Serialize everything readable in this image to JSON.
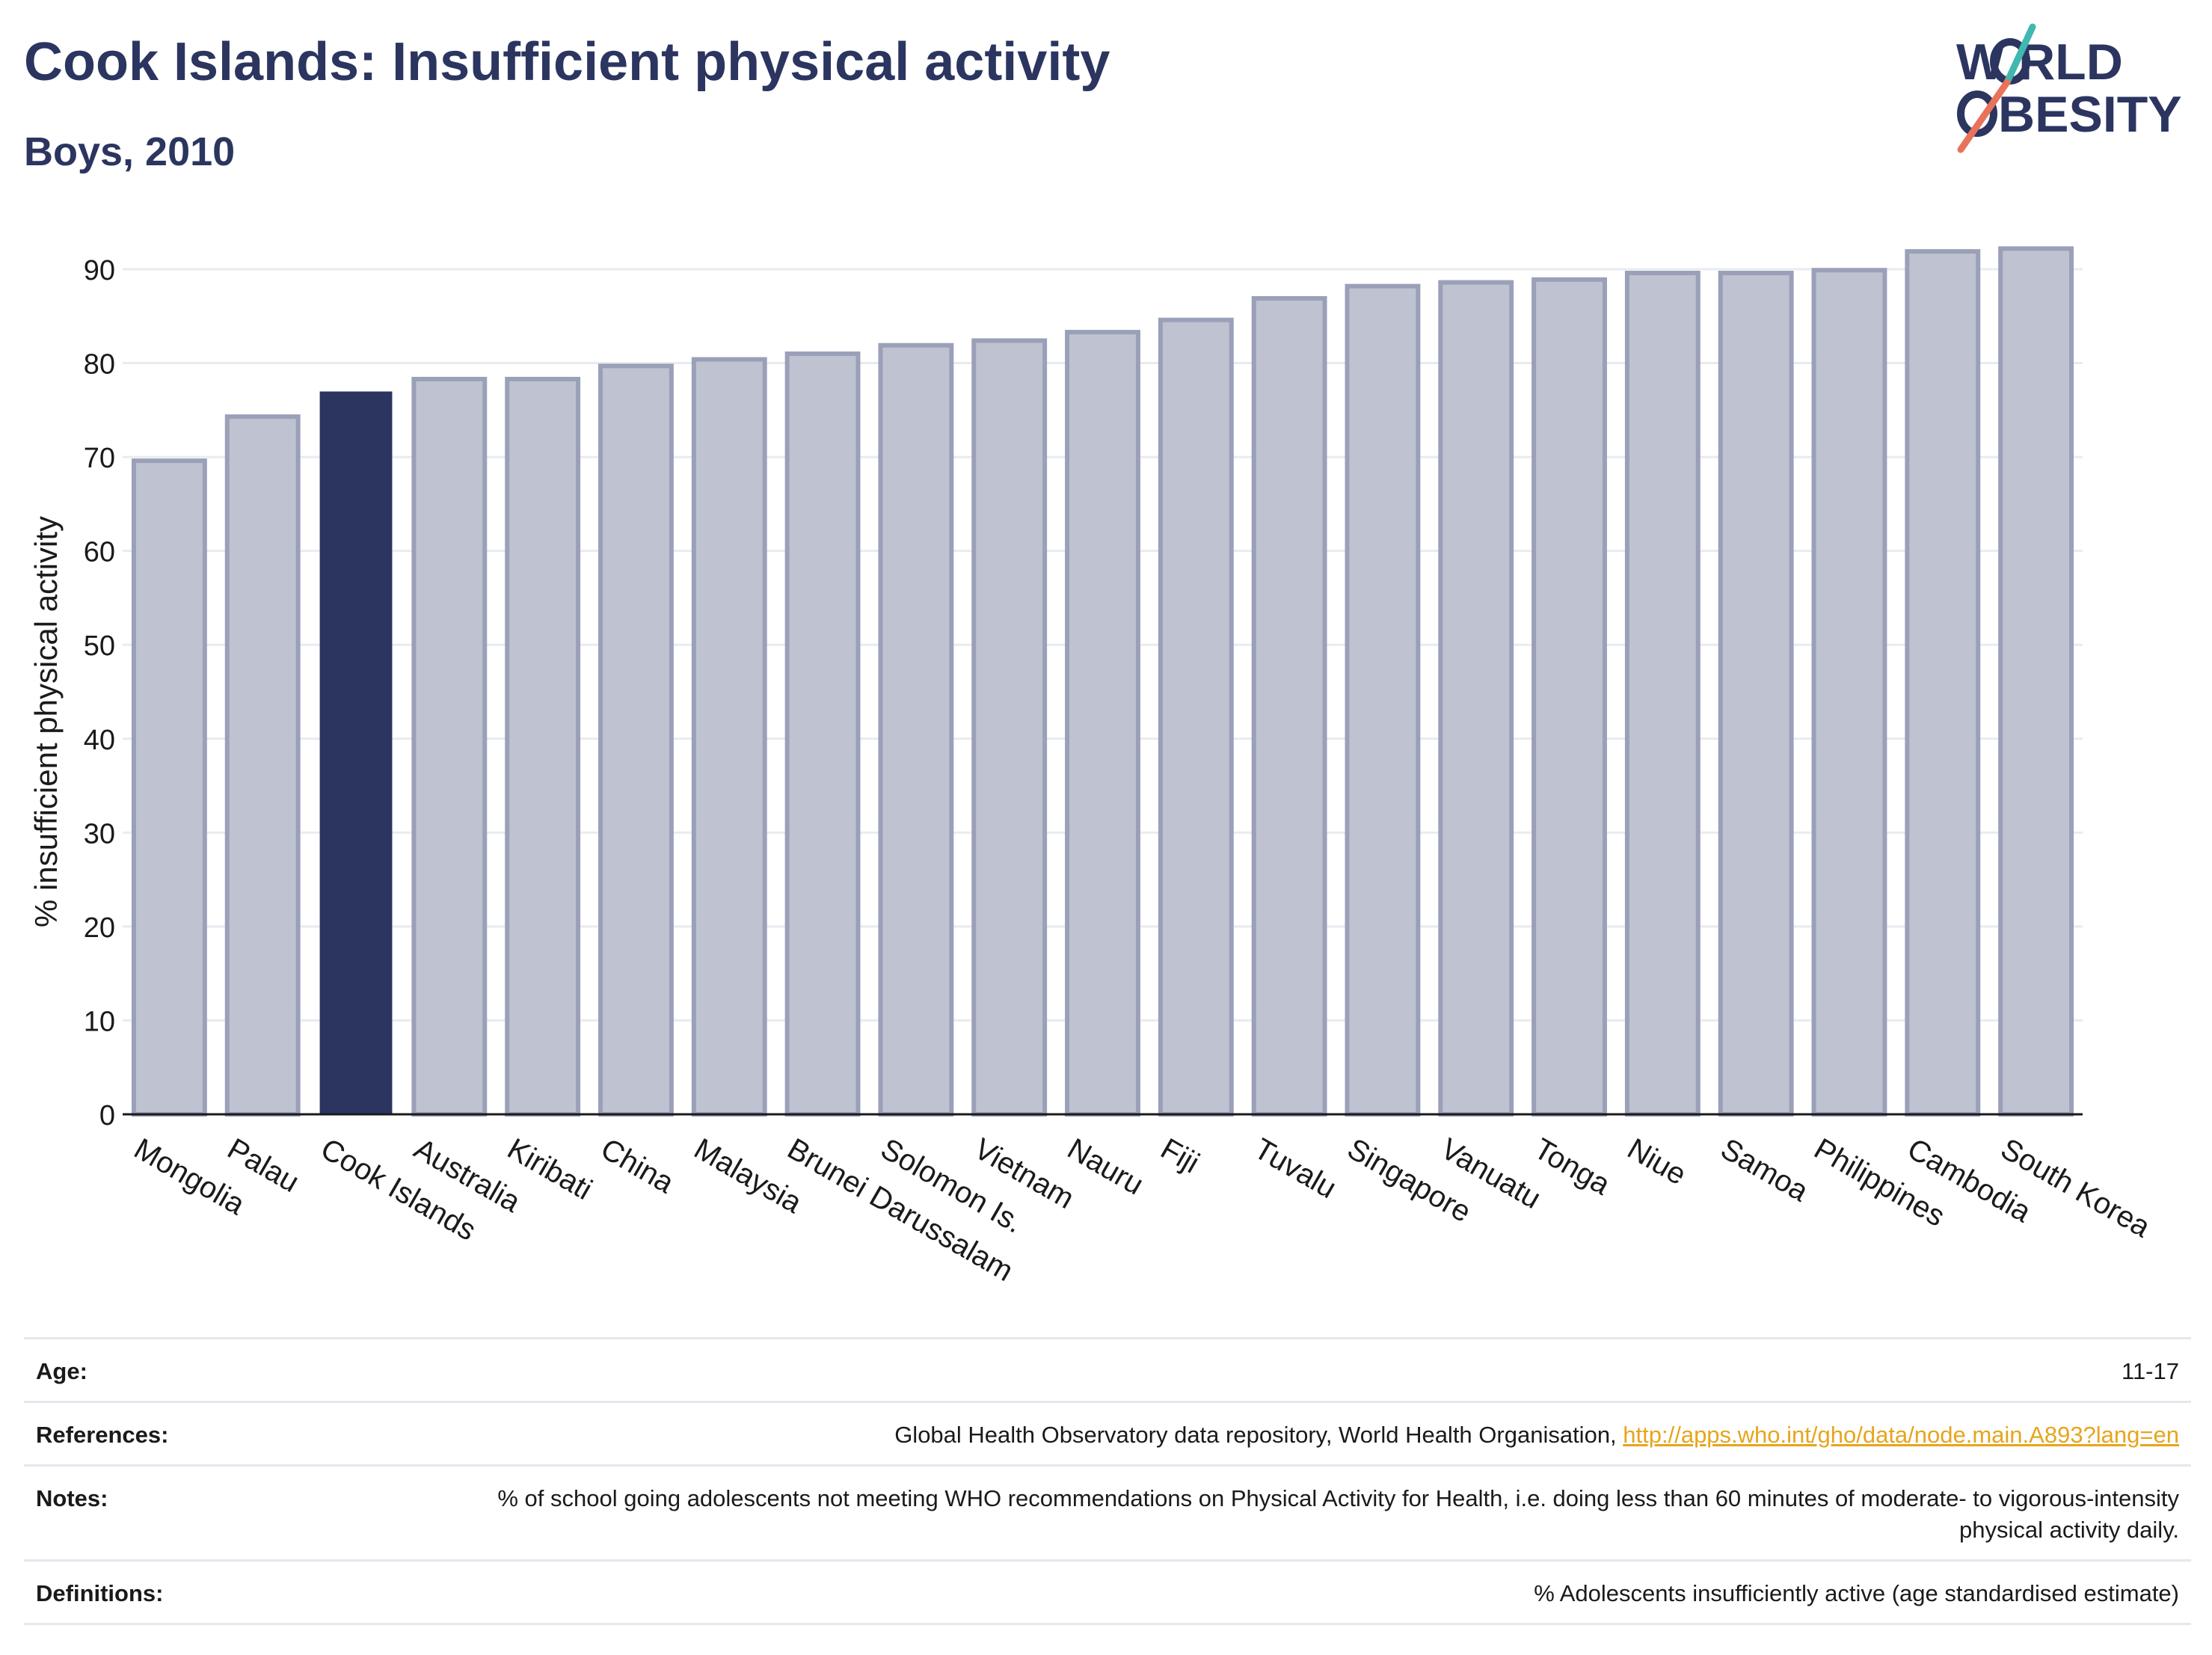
{
  "header": {
    "title": "Cook Islands: Insufficient physical activity",
    "subtitle": "Boys, 2010"
  },
  "logo": {
    "line1": "W RLD",
    "line2": "BESITY",
    "text": "WORLD OBESITY",
    "colors": {
      "text": "#2b3560",
      "slash_teal": "#3fb8b0",
      "slash_coral": "#e8735a"
    }
  },
  "colors": {
    "highlight_bar": "#2b3560",
    "other_bar_fill": "#bfc2d0",
    "other_bar_stroke": "#9aa0b8",
    "grid": "#e8ecf0"
  },
  "chart_data": {
    "type": "bar",
    "categories": [
      "Mongolia",
      "Palau",
      "Cook Islands",
      "Australia",
      "Kiribati",
      "China",
      "Malaysia",
      "Brunei Darussalam",
      "Solomon Is.",
      "Vietnam",
      "Nauru",
      "Fiji",
      "Tuvalu",
      "Singapore",
      "Vanuatu",
      "Tonga",
      "Niue",
      "Samoa",
      "Philippines",
      "Cambodia",
      "South Korea"
    ],
    "values": [
      69.6,
      74.3,
      76.9,
      78.3,
      78.3,
      79.7,
      80.4,
      81.0,
      81.9,
      82.4,
      83.3,
      84.6,
      86.9,
      88.2,
      88.6,
      88.9,
      89.6,
      89.6,
      89.9,
      91.9,
      92.2
    ],
    "highlight": "Cook Islands",
    "title": "Cook Islands: Insufficient physical activity",
    "subtitle": "Boys, 2010",
    "xlabel": "",
    "ylabel": "% insufficient physical activity",
    "ylim": [
      0,
      95
    ],
    "yticks": [
      0,
      10,
      20,
      30,
      40,
      50,
      60,
      70,
      80,
      90
    ],
    "grid": true
  },
  "footer": {
    "age_label": "Age:",
    "age_value": "11-17",
    "references_label": "References:",
    "references_text": "Global Health Observatory data repository, World Health Organisation, ",
    "references_link": "http://apps.who.int/gho/data/node.main.A893?lang=en",
    "notes_label": "Notes:",
    "notes_value": "% of school going adolescents not meeting WHO recommendations on Physical Activity for Health, i.e. doing less than 60 minutes of moderate- to vigorous-intensity physical activity daily.",
    "definitions_label": "Definitions:",
    "definitions_value": "% Adolescents insufficiently active (age standardised estimate)"
  }
}
